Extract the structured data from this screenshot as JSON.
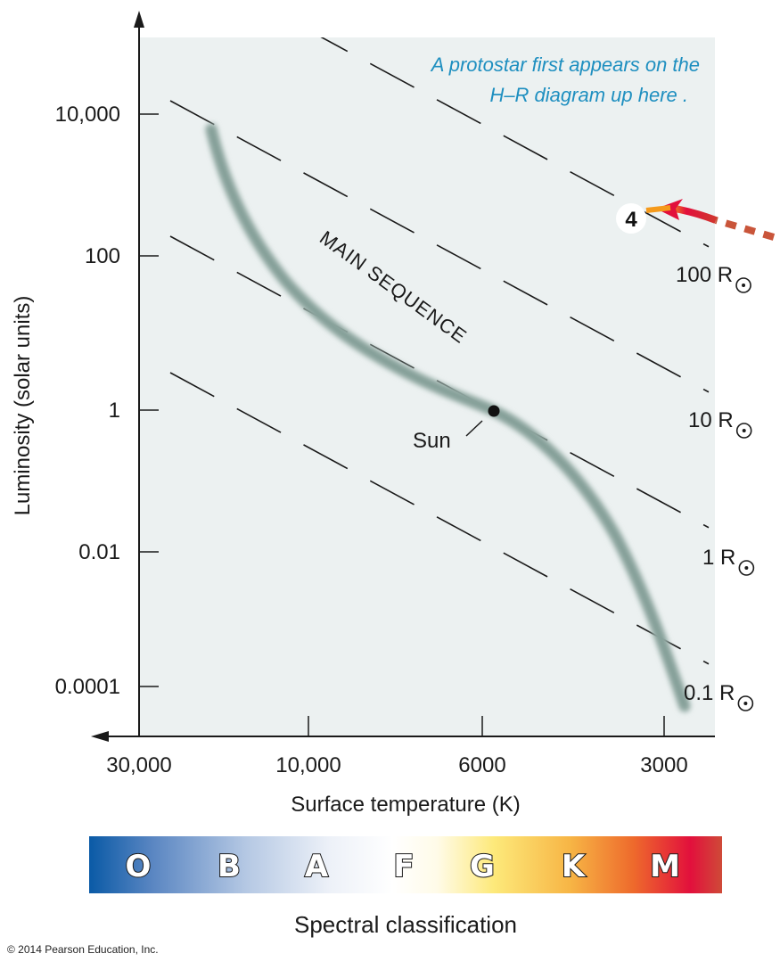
{
  "chart_data": {
    "type": "hr-diagram",
    "title": "",
    "xlabel": "Surface temperature (K)",
    "ylabel": "Luminosity (solar units)",
    "x_scale": "log-reversed",
    "y_scale": "log",
    "x_ticks": [
      {
        "value": 30000,
        "label": "30,000"
      },
      {
        "value": 10000,
        "label": "10,000"
      },
      {
        "value": 6000,
        "label": "6000"
      },
      {
        "value": 3000,
        "label": "3000"
      }
    ],
    "y_ticks": [
      {
        "value": 10000,
        "label": "10,000"
      },
      {
        "value": 100,
        "label": "100"
      },
      {
        "value": 1,
        "label": "1"
      },
      {
        "value": 0.01,
        "label": "0.01"
      },
      {
        "value": 0.0001,
        "label": "0.0001"
      }
    ],
    "radius_lines": [
      {
        "label": "100 R",
        "radius": 100
      },
      {
        "label": "10 R",
        "radius": 10
      },
      {
        "label": "1 R",
        "radius": 1
      },
      {
        "label": "0.1 R",
        "radius": 0.1
      }
    ],
    "main_sequence_label": "MAIN SEQUENCE",
    "sun": {
      "label": "Sun",
      "temperature": 5800,
      "luminosity": 1
    },
    "protostar_marker": {
      "label": "4",
      "temperature": 3000,
      "luminosity": 500
    },
    "annotation": [
      "A protostar first appears on the",
      "H–R diagram up here ."
    ],
    "spectral_classes": [
      "O",
      "B",
      "A",
      "F",
      "G",
      "K",
      "M"
    ],
    "spectral_label": "Spectral classification"
  },
  "colors": {
    "plot_bg": "#ecf1f1",
    "annotation": "#1e8fc0",
    "main_sequence": "#6f8f88",
    "arrow": "#e0243a",
    "arrow_dotted": "#c9553a"
  },
  "copyright": "© 2014 Pearson Education, Inc."
}
